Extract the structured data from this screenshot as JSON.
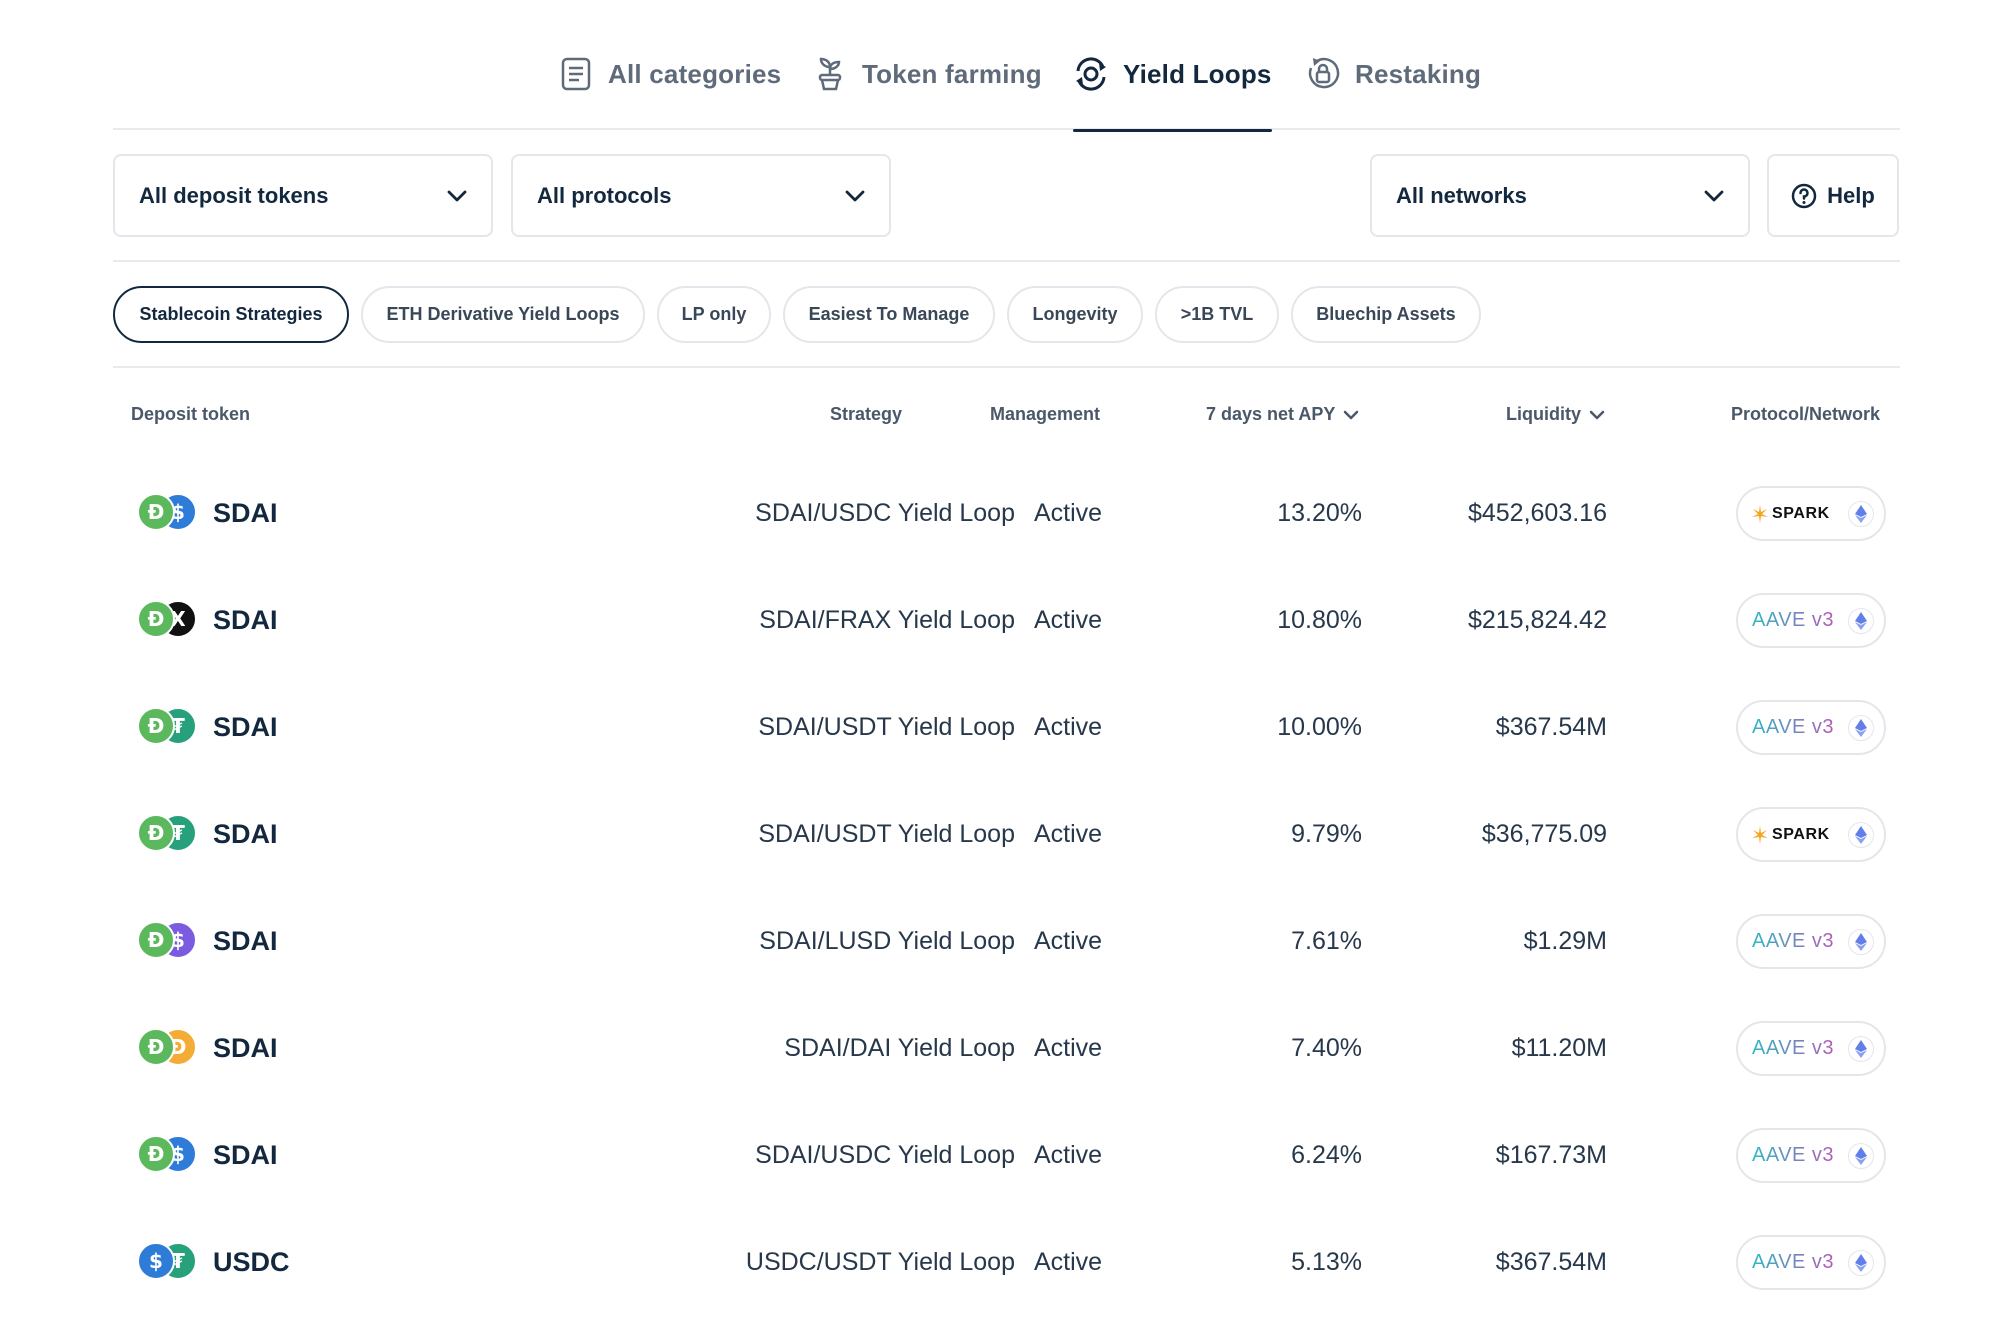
{
  "tabs": [
    {
      "label": "All categories",
      "icon": "document-icon",
      "active": false
    },
    {
      "label": "Token farming",
      "icon": "plant-icon",
      "active": false
    },
    {
      "label": "Yield Loops",
      "icon": "loop-icon",
      "active": true
    },
    {
      "label": "Restaking",
      "icon": "lock-cycle-icon",
      "active": false
    }
  ],
  "filters": {
    "deposit_tokens": "All deposit tokens",
    "protocols": "All protocols",
    "networks": "All networks",
    "help": "Help"
  },
  "chips": [
    {
      "label": "Stablecoin Strategies",
      "active": true
    },
    {
      "label": "ETH Derivative Yield Loops",
      "active": false
    },
    {
      "label": "LP only",
      "active": false
    },
    {
      "label": "Easiest To Manage",
      "active": false
    },
    {
      "label": "Longevity",
      "active": false
    },
    {
      "label": ">1B TVL",
      "active": false
    },
    {
      "label": "Bluechip Assets",
      "active": false
    }
  ],
  "table": {
    "headers": {
      "deposit_token": "Deposit token",
      "strategy": "Strategy",
      "management": "Management",
      "apy": "7 days net APY",
      "liquidity": "Liquidity",
      "protocol": "Protocol/Network"
    },
    "rows": [
      {
        "token": "SDAI",
        "pair_icon": "usdc",
        "strategy": "SDAI/USDC Yield Loop",
        "management": "Active",
        "apy": "13.20%",
        "liquidity": "$452,603.16",
        "protocol": "SPARK",
        "protocol_type": "spark"
      },
      {
        "token": "SDAI",
        "pair_icon": "frax",
        "strategy": "SDAI/FRAX Yield Loop",
        "management": "Active",
        "apy": "10.80%",
        "liquidity": "$215,824.42",
        "protocol": "AAVE v3",
        "protocol_type": "aave"
      },
      {
        "token": "SDAI",
        "pair_icon": "usdt",
        "strategy": "SDAI/USDT Yield Loop",
        "management": "Active",
        "apy": "10.00%",
        "liquidity": "$367.54M",
        "protocol": "AAVE v3",
        "protocol_type": "aave"
      },
      {
        "token": "SDAI",
        "pair_icon": "usdt",
        "strategy": "SDAI/USDT Yield Loop",
        "management": "Active",
        "apy": "9.79%",
        "liquidity": "$36,775.09",
        "protocol": "SPARK",
        "protocol_type": "spark"
      },
      {
        "token": "SDAI",
        "pair_icon": "lusd",
        "strategy": "SDAI/LUSD Yield Loop",
        "management": "Active",
        "apy": "7.61%",
        "liquidity": "$1.29M",
        "protocol": "AAVE v3",
        "protocol_type": "aave"
      },
      {
        "token": "SDAI",
        "pair_icon": "dai",
        "strategy": "SDAI/DAI Yield Loop",
        "management": "Active",
        "apy": "7.40%",
        "liquidity": "$11.20M",
        "protocol": "AAVE v3",
        "protocol_type": "aave"
      },
      {
        "token": "SDAI",
        "pair_icon": "usdc",
        "strategy": "SDAI/USDC Yield Loop",
        "management": "Active",
        "apy": "6.24%",
        "liquidity": "$167.73M",
        "protocol": "AAVE v3",
        "protocol_type": "aave"
      },
      {
        "token": "USDC",
        "pair_icon": "usdt",
        "strategy": "USDC/USDT Yield Loop",
        "management": "Active",
        "apy": "5.13%",
        "liquidity": "$367.54M",
        "protocol": "AAVE v3",
        "protocol_type": "aave"
      }
    ]
  },
  "colors": {
    "sdai": "#5cb85c",
    "usdc": "#2f7bd8",
    "frax": "#111111",
    "usdt": "#26a17b",
    "lusd": "#7b5ce0",
    "dai": "#f5ac37",
    "text_dark": "#13283f",
    "border": "#e3e7eb"
  }
}
